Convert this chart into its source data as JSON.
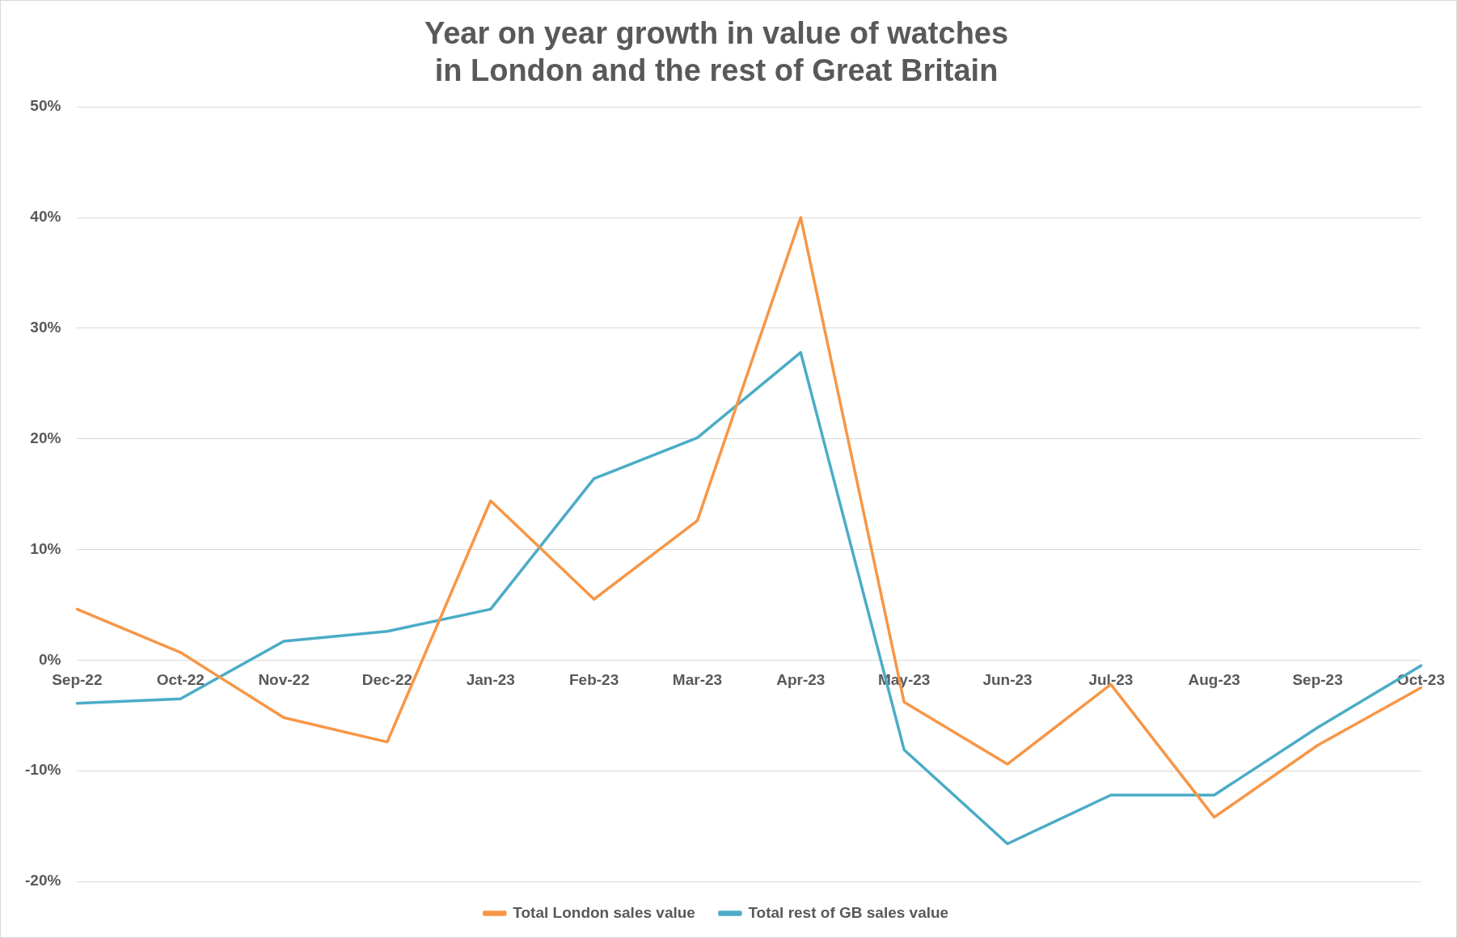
{
  "chart_data": {
    "type": "line",
    "title": "Year on year growth in value of watches\nin London and the rest of Great Britain",
    "categories": [
      "Sep-22",
      "Oct-22",
      "Nov-22",
      "Dec-22",
      "Jan-23",
      "Feb-23",
      "Mar-23",
      "Apr-23",
      "May-23",
      "Jun-23",
      "Jul-23",
      "Aug-23",
      "Sep-23",
      "Oct-23"
    ],
    "series": [
      {
        "name": "Total London sales value",
        "color": "#f79646",
        "values": [
          4.6,
          0.7,
          -5.2,
          -7.4,
          14.4,
          5.5,
          12.6,
          40.0,
          -3.8,
          -9.4,
          -2.2,
          -14.2,
          -7.7,
          -2.5
        ]
      },
      {
        "name": "Total rest of GB sales value",
        "color": "#4bacc6",
        "values": [
          -3.9,
          -3.5,
          1.7,
          2.6,
          4.6,
          16.4,
          20.1,
          27.8,
          -8.1,
          -16.6,
          -12.2,
          -12.2,
          -6.1,
          -0.5
        ]
      }
    ],
    "ylim": [
      -20,
      50
    ],
    "yticks": [
      {
        "value": -20,
        "label": "-20%"
      },
      {
        "value": -10,
        "label": "-10%"
      },
      {
        "value": 0,
        "label": "0%"
      },
      {
        "value": 10,
        "label": "10%"
      },
      {
        "value": 20,
        "label": "20%"
      },
      {
        "value": 30,
        "label": "30%"
      },
      {
        "value": 40,
        "label": "40%"
      },
      {
        "value": 50,
        "label": "50%"
      }
    ],
    "grid": "y",
    "legend": "bottom",
    "marker": "none",
    "line_style": "solid"
  }
}
